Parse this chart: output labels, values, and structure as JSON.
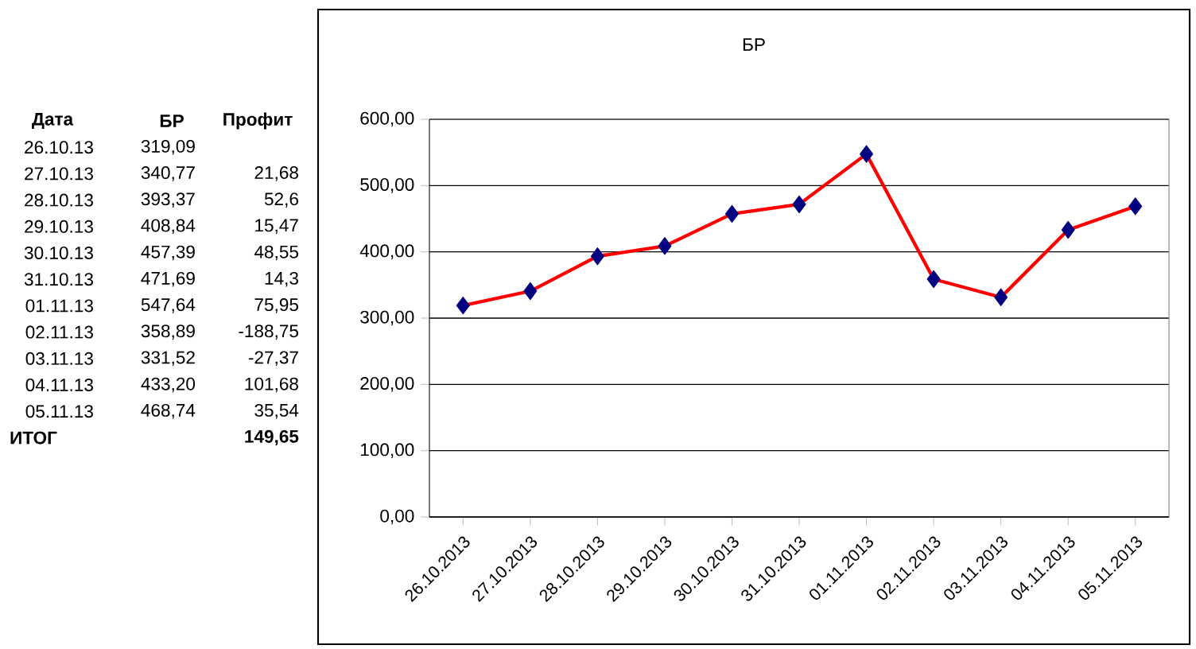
{
  "chart_data": [
    {
      "type": "other",
      "annotations": [
        "Дата",
        "БР",
        "Профит",
        "26.10.13",
        "319,09",
        "27.10.13",
        "340,77",
        "21,68",
        "28.10.13",
        "393,37",
        "52,6",
        "29.10.13",
        "408,84",
        "15,47",
        "30.10.13",
        "457,39",
        "48,55",
        "31.10.13",
        "471,69",
        "14,3",
        "01.11.13",
        "547,64",
        "75,95",
        "02.11.13",
        "358,89",
        "-188,75",
        "03.11.13",
        "331,52",
        "-27,37",
        "04.11.13",
        "433,20",
        "101,68",
        "05.11.13",
        "468,74",
        "35,54",
        "ИТОГ",
        "149,65"
      ]
    },
    {
      "type": "line",
      "title": "БР",
      "categories": [
        "26.10.2013",
        "27.10.2013",
        "28.10.2013",
        "29.10.2013",
        "30.10.2013",
        "31.10.2013",
        "01.11.2013",
        "02.11.2013",
        "03.11.2013",
        "04.11.2013",
        "05.11.2013"
      ],
      "series": [
        {
          "color": "#ff0000",
          "colors": [
            "#000080",
            "#000080",
            "#000080",
            "#000080",
            "#000080",
            "#000080",
            "#000080",
            "#000080",
            "#000080",
            "#000080",
            "#000080"
          ],
          "values": [
            319.09,
            340.77,
            393.37,
            408.84,
            457.39,
            471.69,
            547.64,
            358.89,
            331.52,
            433.2,
            468.74
          ]
        }
      ],
      "ylim": [
        0,
        600
      ],
      "yticks": [
        {
          "value": 0,
          "label": "0,00"
        },
        {
          "value": 100,
          "label": "100,00"
        },
        {
          "value": 200,
          "label": "200,00"
        },
        {
          "value": 300,
          "label": "300,00"
        },
        {
          "value": 400,
          "label": "400,00"
        },
        {
          "value": 500,
          "label": "500,00"
        },
        {
          "value": 600,
          "label": "600,00"
        }
      ],
      "grid": "y",
      "marker": "diamond"
    }
  ]
}
